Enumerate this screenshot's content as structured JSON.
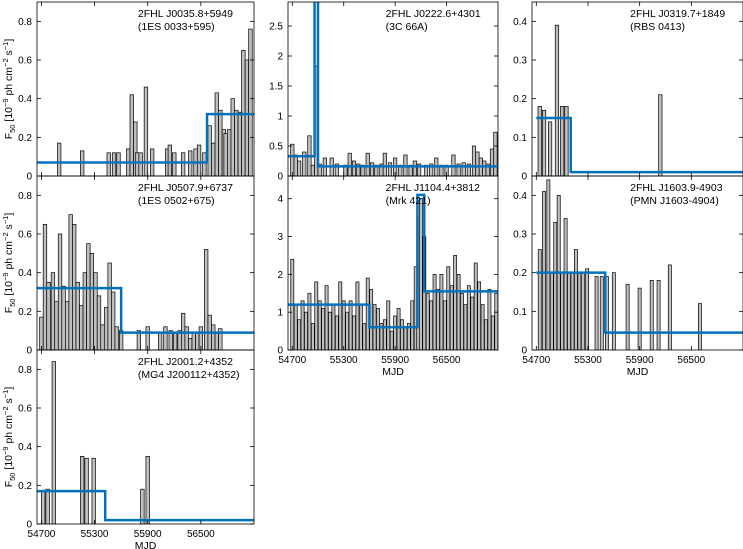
{
  "figure": {
    "ylabel": "F",
    "ylabel_sub": "50",
    "ylabel_unit_a": " [10",
    "ylabel_exp": "−9",
    "ylabel_unit_b": " ph cm",
    "ylabel_exp2": "−2",
    "ylabel_unit_c": " s",
    "ylabel_exp3": "−1",
    "ylabel_unit_d": "]",
    "xlabel": "MJD",
    "block_color": "#0072bd",
    "bar_color": "#bfbfbf"
  },
  "chart_data": [
    {
      "type": "bar",
      "id": "p1",
      "title": "2FHL J0035.8+5949",
      "subtitle": "(1ES 0033+595)",
      "xlim": [
        54650,
        57100
      ],
      "ylim": [
        0,
        0.9
      ],
      "yticks": [
        0,
        0.2,
        0.4,
        0.6,
        0.8
      ],
      "xticks": [
        54700,
        55300,
        55900,
        56500
      ],
      "show_xtick_labels": false,
      "show_ylabel": true,
      "show_xlabel": false,
      "bar_width": 40,
      "bars": [
        [
          54900,
          0.17
        ],
        [
          55160,
          0.13
        ],
        [
          55460,
          0.12
        ],
        [
          55520,
          0.12
        ],
        [
          55570,
          0.12
        ],
        [
          55680,
          0.14
        ],
        [
          55720,
          0.42
        ],
        [
          55760,
          0.28
        ],
        [
          55780,
          0.12
        ],
        [
          55820,
          0.12
        ],
        [
          55880,
          0.46
        ],
        [
          55950,
          0.14
        ],
        [
          56120,
          0.14
        ],
        [
          56150,
          0.16
        ],
        [
          56200,
          0.12
        ],
        [
          56300,
          0.12
        ],
        [
          56380,
          0.13
        ],
        [
          56440,
          0.14
        ],
        [
          56480,
          0.16
        ],
        [
          56540,
          0.12
        ],
        [
          56600,
          0.26
        ],
        [
          56640,
          0.17
        ],
        [
          56680,
          0.43
        ],
        [
          56720,
          0.34
        ],
        [
          56760,
          0.24
        ],
        [
          56780,
          0.22
        ],
        [
          56820,
          0.24
        ],
        [
          56860,
          0.4
        ],
        [
          56900,
          0.34
        ],
        [
          56940,
          0.33
        ],
        [
          56980,
          0.65
        ],
        [
          57020,
          0.6
        ],
        [
          57060,
          0.76
        ]
      ],
      "blocks": [
        [
          54650,
          56570,
          0.07
        ],
        [
          56570,
          57100,
          0.32
        ]
      ]
    },
    {
      "type": "bar",
      "id": "p2",
      "title": "2FHL J0222.6+4301",
      "subtitle": "(3C 66A)",
      "xlim": [
        54650,
        57100
      ],
      "ylim": [
        0,
        2.9
      ],
      "yticks": [
        0,
        0.5,
        1,
        1.5,
        2,
        2.5
      ],
      "xticks": [
        54700,
        55300,
        55900,
        56500
      ],
      "show_xtick_labels": false,
      "show_ylabel": false,
      "show_xlabel": false,
      "bar_width": 40,
      "bars": [
        [
          54700,
          0.53
        ],
        [
          54740,
          0.35
        ],
        [
          54780,
          0.25
        ],
        [
          54840,
          0.4
        ],
        [
          54900,
          0.67
        ],
        [
          54940,
          0.18
        ],
        [
          54980,
          1.83
        ],
        [
          55020,
          0.2
        ],
        [
          55080,
          0.3
        ],
        [
          55160,
          0.3
        ],
        [
          55220,
          0.2
        ],
        [
          55320,
          0.18
        ],
        [
          55370,
          0.38
        ],
        [
          55420,
          0.25
        ],
        [
          55470,
          0.2
        ],
        [
          55520,
          0.18
        ],
        [
          55580,
          0.38
        ],
        [
          55630,
          0.22
        ],
        [
          55680,
          0.18
        ],
        [
          55740,
          0.2
        ],
        [
          55780,
          0.38
        ],
        [
          55840,
          0.22
        ],
        [
          55900,
          0.3
        ],
        [
          55960,
          0.18
        ],
        [
          56020,
          0.35
        ],
        [
          56080,
          0.18
        ],
        [
          56130,
          0.25
        ],
        [
          56180,
          0.2
        ],
        [
          56260,
          0.18
        ],
        [
          56320,
          0.2
        ],
        [
          56380,
          0.3
        ],
        [
          56440,
          0.18
        ],
        [
          56500,
          0.18
        ],
        [
          56580,
          0.35
        ],
        [
          56640,
          0.2
        ],
        [
          56700,
          0.22
        ],
        [
          56760,
          0.2
        ],
        [
          56820,
          0.5
        ],
        [
          56860,
          0.4
        ],
        [
          56900,
          0.3
        ],
        [
          56940,
          0.25
        ],
        [
          56980,
          0.2
        ],
        [
          57030,
          0.45
        ],
        [
          57070,
          0.73
        ]
      ],
      "blocks": [
        [
          54650,
          54960,
          0.33
        ],
        [
          54960,
          55000,
          4.6
        ],
        [
          55000,
          57100,
          0.16
        ]
      ]
    },
    {
      "type": "bar",
      "id": "p3",
      "title": "2FHL J0319.7+1849",
      "subtitle": "(RBS 0413)",
      "xlim": [
        54650,
        57100
      ],
      "ylim": [
        0,
        0.45
      ],
      "yticks": [
        0,
        0.1,
        0.2,
        0.3,
        0.4
      ],
      "xticks": [
        54700,
        55300,
        55900,
        56500
      ],
      "show_xtick_labels": false,
      "show_ylabel": false,
      "show_xlabel": false,
      "bar_width": 40,
      "bars": [
        [
          54740,
          0.18
        ],
        [
          54790,
          0.17
        ],
        [
          54860,
          0.14
        ],
        [
          54940,
          0.39
        ],
        [
          55000,
          0.18
        ],
        [
          55050,
          0.18
        ],
        [
          56140,
          0.21
        ]
      ],
      "blocks": [
        [
          54700,
          55100,
          0.15
        ],
        [
          55100,
          57100,
          0.01
        ]
      ]
    },
    {
      "type": "bar",
      "id": "p4",
      "title": "2FHL J0507.9+6737",
      "subtitle": "(1ES 0502+675)",
      "xlim": [
        54650,
        57100
      ],
      "ylim": [
        0,
        0.9
      ],
      "yticks": [
        0,
        0.2,
        0.4,
        0.6,
        0.8
      ],
      "xticks": [
        54700,
        55300,
        55900,
        56500
      ],
      "show_xtick_labels": false,
      "show_ylabel": true,
      "show_xlabel": false,
      "bar_width": 40,
      "bars": [
        [
          54700,
          0.17
        ],
        [
          54740,
          0.65
        ],
        [
          54780,
          0.35
        ],
        [
          54830,
          0.4
        ],
        [
          54870,
          0.25
        ],
        [
          54910,
          0.6
        ],
        [
          54950,
          0.33
        ],
        [
          54990,
          0.25
        ],
        [
          55030,
          0.7
        ],
        [
          55070,
          0.65
        ],
        [
          55110,
          0.35
        ],
        [
          55150,
          0.23
        ],
        [
          55190,
          0.4
        ],
        [
          55230,
          0.55
        ],
        [
          55270,
          0.5
        ],
        [
          55310,
          0.4
        ],
        [
          55350,
          0.28
        ],
        [
          55390,
          0.13
        ],
        [
          55430,
          0.22
        ],
        [
          55470,
          0.45
        ],
        [
          55510,
          0.3
        ],
        [
          55550,
          0.12
        ],
        [
          55600,
          0.1
        ],
        [
          55800,
          0.1
        ],
        [
          55900,
          0.12
        ],
        [
          56040,
          0.09
        ],
        [
          56100,
          0.12
        ],
        [
          56160,
          0.1
        ],
        [
          56210,
          0.09
        ],
        [
          56260,
          0.1
        ],
        [
          56300,
          0.19
        ],
        [
          56340,
          0.12
        ],
        [
          56380,
          0.06
        ],
        [
          56420,
          0.09
        ],
        [
          56460,
          0.09
        ],
        [
          56500,
          0.12
        ],
        [
          56560,
          0.52
        ],
        [
          56600,
          0.18
        ],
        [
          56640,
          0.13
        ],
        [
          56680,
          0.09
        ],
        [
          56720,
          0.11
        ]
      ],
      "blocks": [
        [
          54650,
          55600,
          0.32
        ],
        [
          55600,
          57100,
          0.09
        ]
      ]
    },
    {
      "type": "bar",
      "id": "p5",
      "title": "2FHL J1104.4+3812",
      "subtitle": "(Mrk 421)",
      "xlim": [
        54650,
        57100
      ],
      "ylim": [
        0,
        4.6
      ],
      "yticks": [
        0,
        1,
        2,
        3,
        4
      ],
      "xticks": [
        54700,
        55300,
        55900,
        56500
      ],
      "show_xtick_labels": true,
      "show_ylabel": false,
      "show_xlabel": true,
      "bar_width": 36,
      "bars": [
        [
          54700,
          2.4
        ],
        [
          54740,
          1.2
        ],
        [
          54780,
          0.8
        ],
        [
          54820,
          1.3
        ],
        [
          54860,
          1.0
        ],
        [
          54900,
          1.5
        ],
        [
          54940,
          0.7
        ],
        [
          54980,
          1.8
        ],
        [
          55020,
          1.3
        ],
        [
          55060,
          1.1
        ],
        [
          55100,
          1.7
        ],
        [
          55140,
          1.0
        ],
        [
          55180,
          1.2
        ],
        [
          55220,
          0.9
        ],
        [
          55260,
          1.8
        ],
        [
          55300,
          1.3
        ],
        [
          55340,
          1.0
        ],
        [
          55380,
          1.3
        ],
        [
          55420,
          0.9
        ],
        [
          55460,
          1.8
        ],
        [
          55500,
          1.2
        ],
        [
          55540,
          0.7
        ],
        [
          55580,
          1.9
        ],
        [
          55620,
          1.6
        ],
        [
          55660,
          1.2
        ],
        [
          55700,
          1.1
        ],
        [
          55740,
          0.7
        ],
        [
          55780,
          0.8
        ],
        [
          55820,
          1.3
        ],
        [
          55860,
          0.5
        ],
        [
          55900,
          0.9
        ],
        [
          55940,
          1.1
        ],
        [
          55980,
          0.8
        ],
        [
          56020,
          0.6
        ],
        [
          56060,
          0.7
        ],
        [
          56100,
          1.3
        ],
        [
          56140,
          2.2
        ],
        [
          56170,
          3.5
        ],
        [
          56200,
          4.0
        ],
        [
          56240,
          3.0
        ],
        [
          56280,
          1.5
        ],
        [
          56320,
          1.3
        ],
        [
          56360,
          2.0
        ],
        [
          56400,
          1.6
        ],
        [
          56440,
          2.0
        ],
        [
          56480,
          1.3
        ],
        [
          56520,
          2.2
        ],
        [
          56560,
          1.7
        ],
        [
          56600,
          2.5
        ],
        [
          56640,
          2.0
        ],
        [
          56680,
          1.5
        ],
        [
          56720,
          1.2
        ],
        [
          56760,
          1.7
        ],
        [
          56800,
          1.4
        ],
        [
          56840,
          2.3
        ],
        [
          56880,
          1.8
        ],
        [
          56920,
          1.2
        ],
        [
          56960,
          0.8
        ],
        [
          57000,
          1.6
        ],
        [
          57040,
          0.9
        ],
        [
          57080,
          1.5
        ]
      ],
      "blocks": [
        [
          54650,
          55600,
          1.2
        ],
        [
          55600,
          56160,
          0.6
        ],
        [
          56160,
          56240,
          4.1
        ],
        [
          56240,
          57100,
          1.55
        ]
      ]
    },
    {
      "type": "bar",
      "id": "p6",
      "title": "2FHL J1603.9-4903",
      "subtitle": "(PMN J1603-4904)",
      "xlim": [
        54650,
        57100
      ],
      "ylim": [
        0,
        0.45
      ],
      "yticks": [
        0,
        0.1,
        0.2,
        0.3,
        0.4
      ],
      "xticks": [
        54700,
        55300,
        55900,
        56500
      ],
      "show_xtick_labels": true,
      "show_ylabel": false,
      "show_xlabel": true,
      "bar_width": 36,
      "bars": [
        [
          54740,
          0.26
        ],
        [
          54790,
          0.41
        ],
        [
          54840,
          0.44
        ],
        [
          54880,
          0.2
        ],
        [
          54920,
          0.33
        ],
        [
          54960,
          0.4
        ],
        [
          55000,
          0.2
        ],
        [
          55040,
          0.34
        ],
        [
          55080,
          0.2
        ],
        [
          55120,
          0.2
        ],
        [
          55160,
          0.26
        ],
        [
          55200,
          0.2
        ],
        [
          55240,
          0.2
        ],
        [
          55290,
          0.21
        ],
        [
          55400,
          0.19
        ],
        [
          55460,
          0.19
        ],
        [
          55520,
          0.19
        ],
        [
          55600,
          0.2
        ],
        [
          55760,
          0.17
        ],
        [
          55900,
          0.16
        ],
        [
          56040,
          0.18
        ],
        [
          56120,
          0.18
        ],
        [
          56250,
          0.22
        ],
        [
          56600,
          0.12
        ]
      ],
      "blocks": [
        [
          54700,
          55500,
          0.2
        ],
        [
          55500,
          57100,
          0.045
        ]
      ]
    },
    {
      "type": "bar",
      "id": "p7",
      "title": "2FHL J2001.2+4352",
      "subtitle": "(MG4 J200112+4352)",
      "xlim": [
        54650,
        57100
      ],
      "ylim": [
        0,
        0.9
      ],
      "yticks": [
        0,
        0.2,
        0.4,
        0.6,
        0.8
      ],
      "xticks": [
        54700,
        55300,
        55900,
        56500
      ],
      "show_xtick_labels": true,
      "show_ylabel": true,
      "show_xlabel": true,
      "bar_width": 40,
      "bars": [
        [
          54720,
          0.17
        ],
        [
          54770,
          0.18
        ],
        [
          54840,
          0.84
        ],
        [
          55160,
          0.35
        ],
        [
          55210,
          0.34
        ],
        [
          55290,
          0.34
        ],
        [
          55840,
          0.18
        ],
        [
          55900,
          0.35
        ]
      ],
      "blocks": [
        [
          54650,
          55420,
          0.17
        ],
        [
          55420,
          57100,
          0.02
        ]
      ]
    }
  ]
}
